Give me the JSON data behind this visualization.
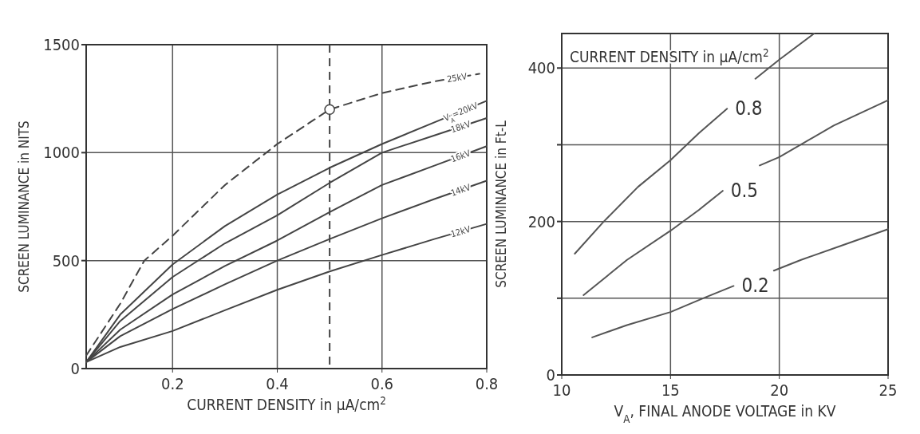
{
  "chart_data": [
    {
      "type": "line",
      "xlabel": "CURRENT DENSITY in μA/cm$^{2}$",
      "ylabel": "SCREEN LUMINANCE in NITS",
      "xlim": [
        0.035,
        0.8
      ],
      "ylim": [
        0,
        1500
      ],
      "xticks": [
        0.2,
        0.4,
        0.6,
        0.8
      ],
      "yticks": [
        0,
        500,
        1000,
        1500
      ],
      "grid": true,
      "marker": "none",
      "series": [
        {
          "name": "25kV",
          "color": "#444444",
          "line_style": "dashed",
          "x": [
            0.035,
            0.1,
            0.146,
            0.2,
            0.3,
            0.4,
            0.5,
            0.6,
            0.7,
            0.786
          ],
          "values": [
            60,
            300,
            500,
            615,
            850,
            1040,
            1200,
            1276,
            1330,
            1365
          ]
        },
        {
          "name": "V$_{A}$=20kV",
          "color": "#444444",
          "line_style": "solid",
          "x": [
            0.035,
            0.1,
            0.2,
            0.3,
            0.4,
            0.5,
            0.6,
            0.7,
            0.8
          ],
          "values": [
            30,
            250,
            482,
            660,
            806,
            930,
            1040,
            1140,
            1240
          ]
        },
        {
          "name": "18kV",
          "color": "#444444",
          "line_style": "solid",
          "x": [
            0.035,
            0.1,
            0.2,
            0.3,
            0.4,
            0.5,
            0.6,
            0.7,
            0.8
          ],
          "values": [
            30,
            220,
            424,
            580,
            710,
            860,
            1000,
            1080,
            1160
          ]
        },
        {
          "name": "16kV",
          "color": "#444444",
          "line_style": "solid",
          "x": [
            0.035,
            0.1,
            0.2,
            0.3,
            0.4,
            0.5,
            0.6,
            0.7,
            0.8
          ],
          "values": [
            30,
            180,
            343,
            475,
            593,
            725,
            850,
            940,
            1030
          ]
        },
        {
          "name": "14kV",
          "color": "#444444",
          "line_style": "solid",
          "x": [
            0.035,
            0.1,
            0.2,
            0.3,
            0.4,
            0.5,
            0.6,
            0.7,
            0.8
          ],
          "values": [
            30,
            150,
            276,
            390,
            500,
            600,
            696,
            785,
            870
          ]
        },
        {
          "name": "12kV",
          "color": "#444444",
          "line_style": "solid",
          "x": [
            0.035,
            0.1,
            0.2,
            0.3,
            0.4,
            0.5,
            0.6,
            0.7,
            0.8
          ],
          "values": [
            30,
            100,
            174,
            270,
            365,
            450,
            526,
            600,
            670
          ]
        },
        {
          "type": "scatter",
          "marker": "circle",
          "color": "#444444",
          "x": [
            0.5
          ],
          "values": [
            1200
          ]
        }
      ],
      "ref_lines": [
        {
          "axis": "x",
          "value": 0.5,
          "line_style": "dashed",
          "color": "#444444"
        }
      ]
    },
    {
      "type": "line",
      "xlabel": "V$_{A}$, FINAL ANODE VOLTAGE in KV",
      "ylabel": "SCREEN LUMINANCE in Ft-L",
      "legend_title": "CURRENT DENSITY in μA/cm$^{2}$",
      "xlim": [
        10,
        25
      ],
      "ylim": [
        0,
        445
      ],
      "xticks": [
        10,
        15,
        20,
        25
      ],
      "yticks": [
        0,
        {
          "value": 100,
          "label": null
        },
        200,
        {
          "value": 300,
          "label": null
        },
        400
      ],
      "grid": true,
      "marker": "none",
      "series": [
        {
          "name": "0.8",
          "color": "#555555",
          "x": [
            10.6,
            11.9,
            13.5,
            15,
            16.3,
            17.6,
            18.2,
            18.9,
            20,
            21.6
          ],
          "values": [
            158,
            199,
            245,
            280,
            315,
            347,
            null,
            386,
            411,
            445
          ]
        },
        {
          "name": "0.5",
          "color": "#555555",
          "x": [
            11,
            13,
            15,
            16.3,
            17.4,
            18.2,
            19.1,
            20,
            22.5,
            25
          ],
          "values": [
            104,
            150,
            188,
            215,
            240,
            null,
            273,
            284,
            325,
            358
          ]
        },
        {
          "name": "0.2",
          "color": "#555555",
          "x": [
            11.4,
            13,
            15,
            16.5,
            17.9,
            18.8,
            19.75,
            21,
            23,
            25
          ],
          "values": [
            49,
            65,
            82,
            100,
            116,
            null,
            136,
            150,
            170,
            190
          ]
        }
      ]
    }
  ]
}
